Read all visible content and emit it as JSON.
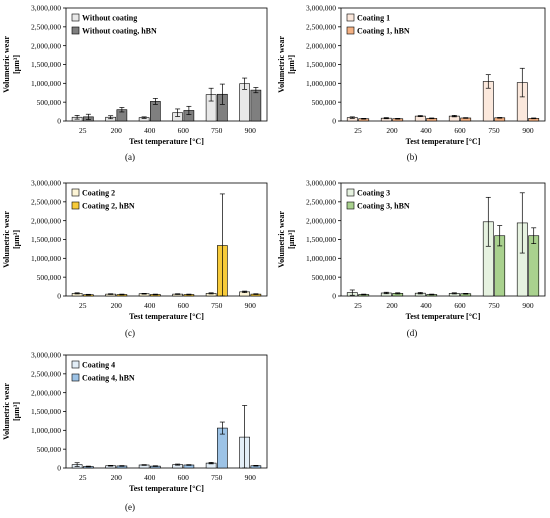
{
  "chart_data": [
    {
      "type": "bar",
      "caption": "(a)",
      "categories": [
        "25",
        "200",
        "400",
        "600",
        "750",
        "900"
      ],
      "xlabel": "Test temperature [°C]",
      "ylabel": [
        "Volumetric wear",
        "[µm³]"
      ],
      "ylim": [
        0,
        3000000
      ],
      "yticks": [
        "0",
        "500,000",
        "1,000,000",
        "1,500,000",
        "2,000,000",
        "2,500,000",
        "3,000,000"
      ],
      "legend_position": "top-left",
      "series": [
        {
          "name": "Without coating",
          "color": "#e8e8e8",
          "values": [
            100000,
            100000,
            90000,
            220000,
            700000,
            990000
          ],
          "errors": [
            50000,
            40000,
            20000,
            100000,
            170000,
            150000
          ]
        },
        {
          "name": "Without coating, hBN",
          "color": "#7f7f7f",
          "values": [
            110000,
            300000,
            520000,
            280000,
            710000,
            820000
          ],
          "errors": [
            70000,
            60000,
            80000,
            110000,
            270000,
            70000
          ]
        }
      ]
    },
    {
      "type": "bar",
      "caption": "(b)",
      "categories": [
        "25",
        "200",
        "400",
        "600",
        "750",
        "900"
      ],
      "xlabel": "Test temperature [°C]",
      "ylabel": [
        "Volumetric wear",
        "[µm³]"
      ],
      "ylim": [
        0,
        3000000
      ],
      "yticks": [
        "0",
        "500,000",
        "1,000,000",
        "1,500,000",
        "2,000,000",
        "2,500,000",
        "3,000,000"
      ],
      "legend_position": "top-left",
      "series": [
        {
          "name": "Coating 1",
          "color": "#fbe8dc",
          "values": [
            90000,
            75000,
            130000,
            130000,
            1050000,
            1020000
          ],
          "errors": [
            20000,
            15000,
            15000,
            20000,
            180000,
            380000
          ]
        },
        {
          "name": "Coating 1, hBN",
          "color": "#f4b183",
          "values": [
            60000,
            60000,
            70000,
            80000,
            85000,
            70000
          ],
          "errors": [
            10000,
            10000,
            10000,
            10000,
            10000,
            10000
          ]
        }
      ]
    },
    {
      "type": "bar",
      "caption": "(c)",
      "categories": [
        "25",
        "200",
        "400",
        "600",
        "750",
        "900"
      ],
      "xlabel": "Test temperature [°C]",
      "ylabel": [
        "Volumetric wear",
        "[µm³]"
      ],
      "ylim": [
        0,
        3000000
      ],
      "yticks": [
        "0",
        "500,000",
        "1,000,000",
        "1,500,000",
        "2,000,000",
        "2,500,000",
        "3,000,000"
      ],
      "legend_position": "top-left",
      "series": [
        {
          "name": "Coating 2",
          "color": "#fdf5d6",
          "values": [
            70000,
            50000,
            60000,
            50000,
            70000,
            110000
          ],
          "errors": [
            15000,
            10000,
            10000,
            10000,
            15000,
            20000
          ]
        },
        {
          "name": "Coating 2, hBN",
          "color": "#f7cb3a",
          "values": [
            35000,
            40000,
            40000,
            40000,
            1340000,
            50000
          ],
          "errors": [
            10000,
            10000,
            10000,
            10000,
            1370000,
            10000
          ]
        }
      ]
    },
    {
      "type": "bar",
      "caption": "(d)",
      "categories": [
        "25",
        "200",
        "400",
        "600",
        "750",
        "900"
      ],
      "xlabel": "Test temperature [°C]",
      "ylabel": [
        "Volumetric wear",
        "[µm³]"
      ],
      "ylim": [
        0,
        3000000
      ],
      "yticks": [
        "0",
        "500,000",
        "1,000,000",
        "1,500,000",
        "2,000,000",
        "2,500,000",
        "3,000,000"
      ],
      "legend_position": "top-left",
      "series": [
        {
          "name": "Coating 3",
          "color": "#e6f2e0",
          "values": [
            90000,
            80000,
            75000,
            70000,
            1970000,
            1940000
          ],
          "errors": [
            70000,
            20000,
            20000,
            15000,
            650000,
            800000
          ]
        },
        {
          "name": "Coating 3, hBN",
          "color": "#a9d18e",
          "values": [
            40000,
            70000,
            40000,
            60000,
            1600000,
            1600000
          ],
          "errors": [
            10000,
            15000,
            10000,
            10000,
            270000,
            210000
          ]
        }
      ]
    },
    {
      "type": "bar",
      "caption": "(e)",
      "categories": [
        "25",
        "200",
        "400",
        "600",
        "750",
        "900"
      ],
      "xlabel": "Test temperature [°C]",
      "ylabel": [
        "Volumetric wear",
        "[µm³]"
      ],
      "ylim": [
        0,
        3000000
      ],
      "yticks": [
        "0",
        "500,000",
        "1,000,000",
        "1,500,000",
        "2,000,000",
        "2,500,000",
        "3,000,000"
      ],
      "legend_position": "top-left",
      "series": [
        {
          "name": "Coating 4",
          "color": "#e3eef7",
          "values": [
            90000,
            60000,
            80000,
            90000,
            130000,
            820000
          ],
          "errors": [
            50000,
            10000,
            10000,
            15000,
            20000,
            840000
          ]
        },
        {
          "name": "Coating 4, hBN",
          "color": "#9dc3e6",
          "values": [
            40000,
            55000,
            50000,
            80000,
            1060000,
            60000
          ],
          "errors": [
            10000,
            10000,
            10000,
            10000,
            160000,
            10000
          ]
        }
      ]
    }
  ]
}
